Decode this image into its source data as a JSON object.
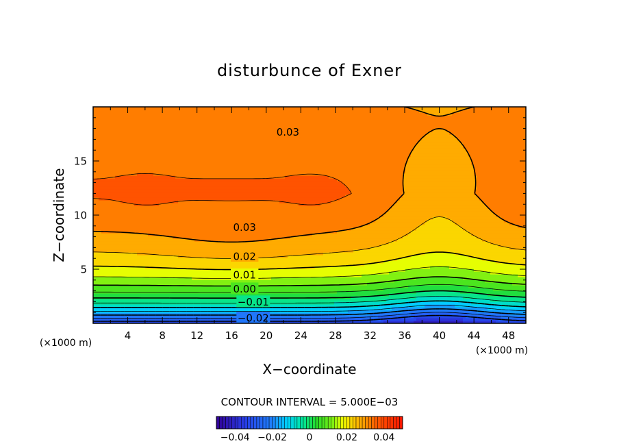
{
  "chart_data": {
    "type": "heatmap",
    "title": "disturbunce of Exner",
    "xlabel": "X−coordinate",
    "ylabel": "Z−coordinate",
    "x_unit": "(×1000 m)",
    "y_unit": "(×1000 m)",
    "xlim": [
      0,
      50
    ],
    "ylim": [
      0,
      20
    ],
    "x_ticks": [
      "4",
      "8",
      "12",
      "16",
      "20",
      "24",
      "28",
      "32",
      "36",
      "40",
      "44",
      "48"
    ],
    "y_ticks": [
      "5",
      "10",
      "15"
    ],
    "contour_interval_text": "CONTOUR INTERVAL = 5.000E−03",
    "contour_interval": 0.005,
    "contour_labels": [
      {
        "text": "0.03",
        "x": 22.5,
        "z": 17.7
      },
      {
        "text": "0.03",
        "x": 17.5,
        "z": 8.9
      },
      {
        "text": "0.02",
        "x": 17.5,
        "z": 6.2
      },
      {
        "text": "0.01",
        "x": 17.5,
        "z": 4.5
      },
      {
        "text": "0.00",
        "x": 17.5,
        "z": 3.2
      },
      {
        "text": "−0.01",
        "x": 18.5,
        "z": 2.0
      },
      {
        "text": "−0.02",
        "x": 18.5,
        "z": 0.5
      }
    ],
    "colorbar": {
      "range": [
        -0.05,
        0.05
      ],
      "tick_values": [
        -0.04,
        -0.02,
        0,
        0.02,
        0.04
      ],
      "tick_labels": [
        "−0.04",
        "−0.02",
        "0",
        "0.02",
        "0.04"
      ]
    },
    "colors": {
      "low": "#3000a0",
      "blue": "#1e60ff",
      "cyan": "#00e0ff",
      "green": "#30e030",
      "yellow": "#f0ff00",
      "orange": "#ffa000",
      "red": "#ff3000"
    }
  }
}
